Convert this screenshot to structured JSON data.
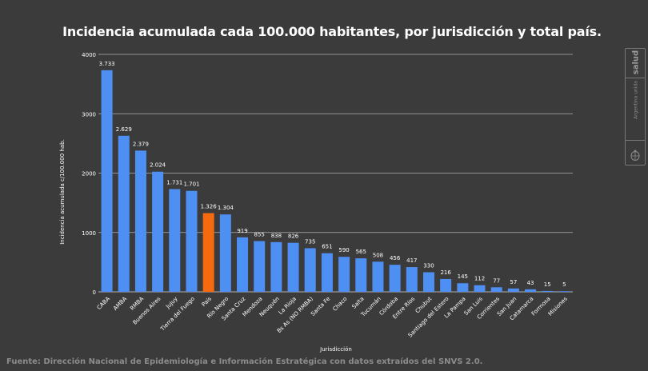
{
  "title": "Incidencia acumulada cada 100.000 habitantes, por jurisdicción y total país.",
  "source": "Fuente: Dirección Nacional de Epidemiología e Información Estratégica con datos extraídos del SNVS 2.0.",
  "logo": {
    "salud": "salud",
    "argentina": "Argentina unida"
  },
  "colors": {
    "background": "#3b3b3b",
    "bar": "#4d8ff2",
    "highlight": "#f46a10",
    "grid": "#b0b0b0",
    "text": "#ffffff"
  },
  "chart_data": {
    "type": "bar",
    "title": "Incidencia acumulada cada 100.000 habitantes, por jurisdicción y total país.",
    "xlabel": "Jurisdicción",
    "ylabel": "Incidencia acumulada c/100.000 hab.",
    "ylim": [
      0,
      4000
    ],
    "yticks": [
      "0",
      "1000",
      "2000",
      "3000",
      "4000"
    ],
    "grid": true,
    "highlight_category": "País",
    "categories": [
      "CABA",
      "AMBA",
      "RMBA",
      "Buenos Aires",
      "Jujuy",
      "Tierra del Fuego",
      "País",
      "Río Negro",
      "Santa Cruz",
      "Mendoza",
      "Neuquén",
      "La Rioja",
      "Bs As (NO RMBA)",
      "Santa Fe",
      "Chaco",
      "Salta",
      "Tucumán",
      "Córdoba",
      "Entre Ríos",
      "Chubut",
      "Santiago del Estero",
      "La Pampa",
      "San Luis",
      "Corrientes",
      "San Juan",
      "Catamarca",
      "Formosa",
      "Misiones"
    ],
    "values": [
      3733,
      2629,
      2379,
      2024,
      1731,
      1701,
      1326,
      1304,
      919,
      855,
      838,
      826,
      735,
      651,
      590,
      565,
      508,
      456,
      417,
      330,
      216,
      145,
      112,
      77,
      57,
      43,
      15,
      5
    ],
    "value_labels": [
      "3.733",
      "2.629",
      "2.379",
      "2.024",
      "1.731",
      "1.701",
      "1.326",
      "1.304",
      "919",
      "855",
      "838",
      "826",
      "735",
      "651",
      "590",
      "565",
      "508",
      "456",
      "417",
      "330",
      "216",
      "145",
      "112",
      "77",
      "57",
      "43",
      "15",
      "5"
    ]
  }
}
